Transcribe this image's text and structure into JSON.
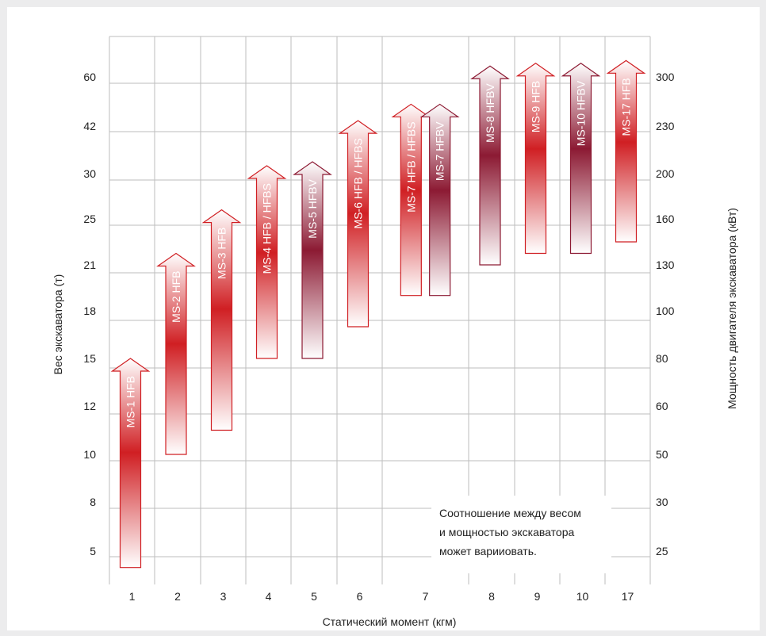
{
  "chart_data": {
    "type": "bar",
    "xlabel": "Статический момент (кгм)",
    "ylabel_left": "Вес экскаватора (т)",
    "ylabel_right": "Мощность двигателя экскаватора (кВт)",
    "categories": [
      "1",
      "2",
      "3",
      "4",
      "5",
      "6",
      "7",
      "8",
      "9",
      "10",
      "17"
    ],
    "y_ticks_left": [
      "60",
      "42",
      "30",
      "25",
      "21",
      "18",
      "15",
      "12",
      "10",
      "8",
      "5"
    ],
    "y_ticks_right": [
      "300",
      "230",
      "200",
      "160",
      "130",
      "100",
      "80",
      "60",
      "50",
      "30",
      "25"
    ],
    "note": [
      "Соотношение между весом",
      "и мощностью экскаватора",
      "может варииовать."
    ],
    "colors": {
      "red": "#d01f23",
      "dark": "#8c1a33",
      "grid": "#bdbdbd"
    },
    "series": [
      {
        "name": "MS-1 HFB",
        "x": "1",
        "y_range": [
          "4",
          "15"
        ],
        "color": "red"
      },
      {
        "name": "MS-2 HFB",
        "x": "2",
        "y_range": [
          "10",
          "22"
        ],
        "color": "red"
      },
      {
        "name": "MS-3 HFB",
        "x": "3",
        "y_range": [
          "11",
          "26"
        ],
        "color": "red"
      },
      {
        "name": "MS-4 HFB / HFBS",
        "x": "4",
        "y_range": [
          "15",
          "32"
        ],
        "color": "red"
      },
      {
        "name": "MS-5 HFBV",
        "x": "5",
        "y_range": [
          "15",
          "33"
        ],
        "color": "dark"
      },
      {
        "name": "MS-6 HFB / HFBS",
        "x": "6",
        "y_range": [
          "17",
          "44"
        ],
        "color": "red"
      },
      {
        "name": "MS-7 HFB / HFBS",
        "x": "7",
        "y_range": [
          "19",
          "50"
        ],
        "color": "red"
      },
      {
        "name": "MS-7 HFBV",
        "x": "7",
        "y_range": [
          "19",
          "50"
        ],
        "color": "dark"
      },
      {
        "name": "MS-8 HFBV",
        "x": "8",
        "y_range": [
          "21",
          "64"
        ],
        "color": "dark"
      },
      {
        "name": "MS-9 HFB",
        "x": "9",
        "y_range": [
          "22",
          "65"
        ],
        "color": "red"
      },
      {
        "name": "MS-10 HFBV",
        "x": "10",
        "y_range": [
          "22",
          "65"
        ],
        "color": "dark"
      },
      {
        "name": "MS-17 HFB",
        "x": "17",
        "y_range": [
          "23",
          "66"
        ],
        "color": "red"
      }
    ]
  }
}
